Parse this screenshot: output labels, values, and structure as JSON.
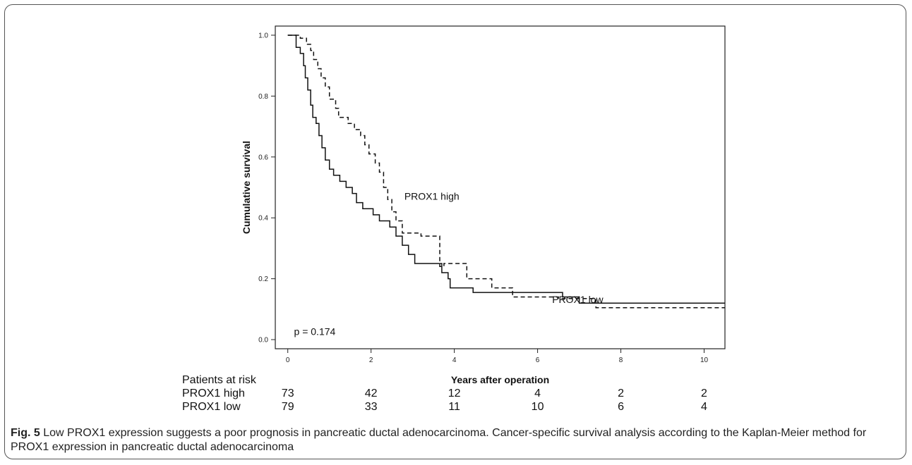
{
  "chart_data": {
    "type": "line",
    "subtype": "kaplan-meier step",
    "xlabel": "Years after operation",
    "ylabel": "Cumulative survival",
    "xlim": [
      -0.3,
      10.5
    ],
    "ylim": [
      -0.03,
      1.03
    ],
    "x_ticks": [
      0,
      2,
      4,
      6,
      8,
      10
    ],
    "y_ticks": [
      0.0,
      0.2,
      0.4,
      0.6,
      0.8,
      1.0
    ],
    "y_tick_labels": [
      "0.0",
      "0.2",
      "0.4",
      "0.6",
      "0.8",
      "1.0"
    ],
    "grid": false,
    "annotation": "p = 0.174",
    "series": [
      {
        "name": "PROX1 high",
        "linestyle": "dashed",
        "points": [
          [
            0,
            1.0
          ],
          [
            0.3,
            1.0
          ],
          [
            0.3,
            0.99
          ],
          [
            0.45,
            0.99
          ],
          [
            0.45,
            0.97
          ],
          [
            0.55,
            0.97
          ],
          [
            0.55,
            0.95
          ],
          [
            0.62,
            0.95
          ],
          [
            0.62,
            0.92
          ],
          [
            0.72,
            0.92
          ],
          [
            0.72,
            0.89
          ],
          [
            0.8,
            0.89
          ],
          [
            0.8,
            0.86
          ],
          [
            0.9,
            0.86
          ],
          [
            0.9,
            0.83
          ],
          [
            1.0,
            0.83
          ],
          [
            1.0,
            0.79
          ],
          [
            1.15,
            0.79
          ],
          [
            1.15,
            0.76
          ],
          [
            1.22,
            0.76
          ],
          [
            1.22,
            0.73
          ],
          [
            1.45,
            0.73
          ],
          [
            1.45,
            0.71
          ],
          [
            1.6,
            0.71
          ],
          [
            1.6,
            0.69
          ],
          [
            1.75,
            0.69
          ],
          [
            1.75,
            0.67
          ],
          [
            1.85,
            0.67
          ],
          [
            1.85,
            0.64
          ],
          [
            1.95,
            0.64
          ],
          [
            1.95,
            0.61
          ],
          [
            2.1,
            0.61
          ],
          [
            2.1,
            0.58
          ],
          [
            2.2,
            0.58
          ],
          [
            2.2,
            0.55
          ],
          [
            2.3,
            0.55
          ],
          [
            2.3,
            0.5
          ],
          [
            2.4,
            0.5
          ],
          [
            2.4,
            0.46
          ],
          [
            2.5,
            0.46
          ],
          [
            2.5,
            0.42
          ],
          [
            2.6,
            0.42
          ],
          [
            2.6,
            0.39
          ],
          [
            2.75,
            0.39
          ],
          [
            2.75,
            0.35
          ],
          [
            3.2,
            0.35
          ],
          [
            3.2,
            0.34
          ],
          [
            3.65,
            0.34
          ],
          [
            3.65,
            0.24
          ],
          [
            3.75,
            0.24
          ],
          [
            3.75,
            0.25
          ],
          [
            4.3,
            0.25
          ],
          [
            4.3,
            0.2
          ],
          [
            4.9,
            0.2
          ],
          [
            4.9,
            0.17
          ],
          [
            5.4,
            0.17
          ],
          [
            5.4,
            0.14
          ],
          [
            6.5,
            0.14
          ],
          [
            6.5,
            0.135
          ],
          [
            7.4,
            0.135
          ],
          [
            7.4,
            0.105
          ],
          [
            10.5,
            0.105
          ]
        ]
      },
      {
        "name": "PROX1 low",
        "linestyle": "solid",
        "points": [
          [
            0,
            1.0
          ],
          [
            0.2,
            1.0
          ],
          [
            0.2,
            0.96
          ],
          [
            0.3,
            0.96
          ],
          [
            0.3,
            0.94
          ],
          [
            0.38,
            0.94
          ],
          [
            0.38,
            0.9
          ],
          [
            0.42,
            0.9
          ],
          [
            0.42,
            0.86
          ],
          [
            0.48,
            0.86
          ],
          [
            0.48,
            0.82
          ],
          [
            0.55,
            0.82
          ],
          [
            0.55,
            0.77
          ],
          [
            0.6,
            0.77
          ],
          [
            0.6,
            0.73
          ],
          [
            0.68,
            0.73
          ],
          [
            0.68,
            0.71
          ],
          [
            0.75,
            0.71
          ],
          [
            0.75,
            0.67
          ],
          [
            0.82,
            0.67
          ],
          [
            0.82,
            0.63
          ],
          [
            0.9,
            0.63
          ],
          [
            0.9,
            0.59
          ],
          [
            1.0,
            0.59
          ],
          [
            1.0,
            0.56
          ],
          [
            1.1,
            0.56
          ],
          [
            1.1,
            0.54
          ],
          [
            1.25,
            0.54
          ],
          [
            1.25,
            0.52
          ],
          [
            1.4,
            0.52
          ],
          [
            1.4,
            0.5
          ],
          [
            1.55,
            0.5
          ],
          [
            1.55,
            0.48
          ],
          [
            1.65,
            0.48
          ],
          [
            1.65,
            0.45
          ],
          [
            1.8,
            0.45
          ],
          [
            1.8,
            0.43
          ],
          [
            2.05,
            0.43
          ],
          [
            2.05,
            0.41
          ],
          [
            2.2,
            0.41
          ],
          [
            2.2,
            0.39
          ],
          [
            2.45,
            0.39
          ],
          [
            2.45,
            0.37
          ],
          [
            2.6,
            0.37
          ],
          [
            2.6,
            0.34
          ],
          [
            2.75,
            0.34
          ],
          [
            2.75,
            0.31
          ],
          [
            2.9,
            0.31
          ],
          [
            2.9,
            0.28
          ],
          [
            3.05,
            0.28
          ],
          [
            3.05,
            0.25
          ],
          [
            3.7,
            0.25
          ],
          [
            3.7,
            0.22
          ],
          [
            3.85,
            0.22
          ],
          [
            3.85,
            0.2
          ],
          [
            3.9,
            0.2
          ],
          [
            3.9,
            0.17
          ],
          [
            4.45,
            0.17
          ],
          [
            4.45,
            0.155
          ],
          [
            6.6,
            0.155
          ],
          [
            6.6,
            0.14
          ],
          [
            7.0,
            0.14
          ],
          [
            7.0,
            0.12
          ],
          [
            10.5,
            0.12
          ]
        ]
      }
    ],
    "series_labels": [
      {
        "text": "PROX1 high",
        "x": 2.8,
        "y": 0.46
      },
      {
        "text": "PROX1 low",
        "x": 6.35,
        "y": 0.12
      }
    ]
  },
  "at_risk_table": {
    "title": "Patients at risk",
    "tick_years": [
      0,
      2,
      4,
      6,
      8,
      10
    ],
    "rows": [
      {
        "label": "PROX1 high",
        "values": [
          "73",
          "42",
          "12",
          "4",
          "2",
          "2"
        ]
      },
      {
        "label": "PROX1 low",
        "values": [
          "79",
          "33",
          "11",
          "10",
          "6",
          "4"
        ]
      }
    ]
  },
  "caption": {
    "figure_label": "Fig. 5",
    "text": "Low PROX1 expression suggests a poor prognosis in pancreatic ductal adenocarcinoma. Cancer-specific survival analysis according to the Kaplan-Meier method for PROX1 expression in pancreatic ductal adenocarcinoma"
  }
}
